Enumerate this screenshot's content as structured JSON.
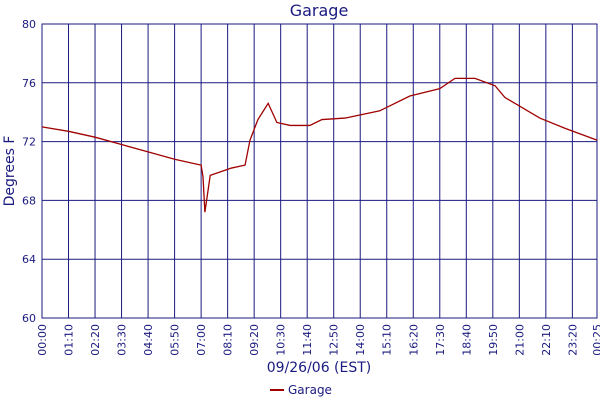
{
  "chart_data": {
    "type": "line",
    "title": "Garage",
    "xlabel": "09/26/06 (EST)",
    "ylabel": "Degrees F",
    "x": [
      0,
      70,
      140,
      210,
      280,
      350,
      420,
      425,
      430,
      444,
      500,
      536,
      549,
      570,
      597,
      620,
      655,
      707,
      739,
      800,
      892,
      971,
      1050,
      1090,
      1143,
      1196,
      1222,
      1314,
      1381,
      1465
    ],
    "series": [
      {
        "name": "Garage",
        "color": "#a00000",
        "values": [
          73.0,
          72.7,
          72.3,
          71.8,
          71.3,
          70.8,
          70.4,
          69.6,
          67.2,
          69.7,
          70.2,
          70.4,
          72.1,
          73.5,
          74.6,
          73.3,
          73.1,
          73.1,
          73.5,
          73.6,
          74.1,
          75.1,
          75.6,
          76.3,
          76.3,
          75.8,
          75.0,
          73.6,
          72.9,
          72.1
        ]
      }
    ],
    "xlim": [
      0,
      1465
    ],
    "xticks": [
      {
        "value": 0,
        "label": "00:00"
      },
      {
        "value": 70,
        "label": "01:10"
      },
      {
        "value": 140,
        "label": "02:20"
      },
      {
        "value": 210,
        "label": "03:30"
      },
      {
        "value": 280,
        "label": "04:40"
      },
      {
        "value": 350,
        "label": "05:50"
      },
      {
        "value": 420,
        "label": "07:00"
      },
      {
        "value": 490,
        "label": "08:10"
      },
      {
        "value": 560,
        "label": "09:20"
      },
      {
        "value": 630,
        "label": "10:30"
      },
      {
        "value": 700,
        "label": "11:40"
      },
      {
        "value": 770,
        "label": "12:50"
      },
      {
        "value": 840,
        "label": "14:00"
      },
      {
        "value": 910,
        "label": "15:10"
      },
      {
        "value": 980,
        "label": "16:20"
      },
      {
        "value": 1050,
        "label": "17:30"
      },
      {
        "value": 1120,
        "label": "18:40"
      },
      {
        "value": 1190,
        "label": "19:50"
      },
      {
        "value": 1260,
        "label": "21:00"
      },
      {
        "value": 1330,
        "label": "22:10"
      },
      {
        "value": 1400,
        "label": "23:20"
      },
      {
        "value": 1465,
        "label": "00:25"
      }
    ],
    "ylim": [
      60,
      80
    ],
    "yticks": [
      60,
      64,
      68,
      72,
      76,
      80
    ],
    "grid": true
  }
}
